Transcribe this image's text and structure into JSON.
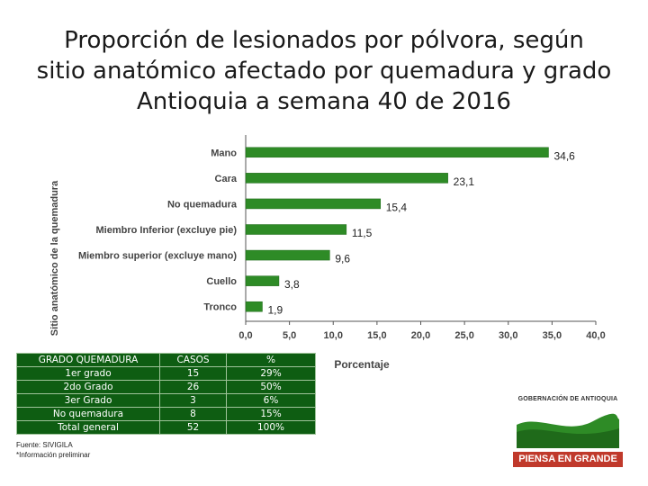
{
  "title_lines": [
    "Proporción de lesionados por pólvora, según",
    "sitio anatómico afectado por quemadura y grado",
    "Antioquia a semana 40 de 2016"
  ],
  "colors": {
    "bar": "#2e8b26",
    "bar_dark": "#1f6a1a",
    "table_bg": "#0e5d12",
    "axis": "#555555"
  },
  "chart_data": {
    "type": "bar",
    "orientation": "horizontal",
    "categories": [
      "Mano",
      "Cara",
      "No quemadura",
      "Miembro Inferior (excluye pie)",
      "Miembro superior (excluye mano)",
      "Cuello",
      "Tronco"
    ],
    "values": [
      34.6,
      23.1,
      15.4,
      11.5,
      9.6,
      3.8,
      1.9
    ],
    "value_labels": [
      "34,6",
      "23,1",
      "15,4",
      "11,5",
      "9,6",
      "3,8",
      "1,9"
    ],
    "xlabel": "Porcentaje",
    "ylabel": "Sitio anatómico de la quemadura",
    "xlim": [
      0,
      40
    ],
    "xticks": [
      "0,0",
      "5,0",
      "10,0",
      "15,0",
      "20,0",
      "25,0",
      "30,0",
      "35,0",
      "40,0"
    ]
  },
  "table": {
    "headers": [
      "GRADO QUEMADURA",
      "CASOS",
      "%"
    ],
    "rows": [
      [
        "1er grado",
        "15",
        "29%"
      ],
      [
        "2do Grado",
        "26",
        "50%"
      ],
      [
        "3er Grado",
        "3",
        "6%"
      ],
      [
        "No quemadura",
        "8",
        "15%"
      ],
      [
        "Total general",
        "52",
        "100%"
      ]
    ]
  },
  "source_lines": [
    "Fuente: SIVIGILA",
    "*Información preliminar"
  ],
  "logo": {
    "top_text": "GOBERNACIÓN DE ANTIOQUIA",
    "banner_text": "PIENSA EN GRANDE"
  }
}
